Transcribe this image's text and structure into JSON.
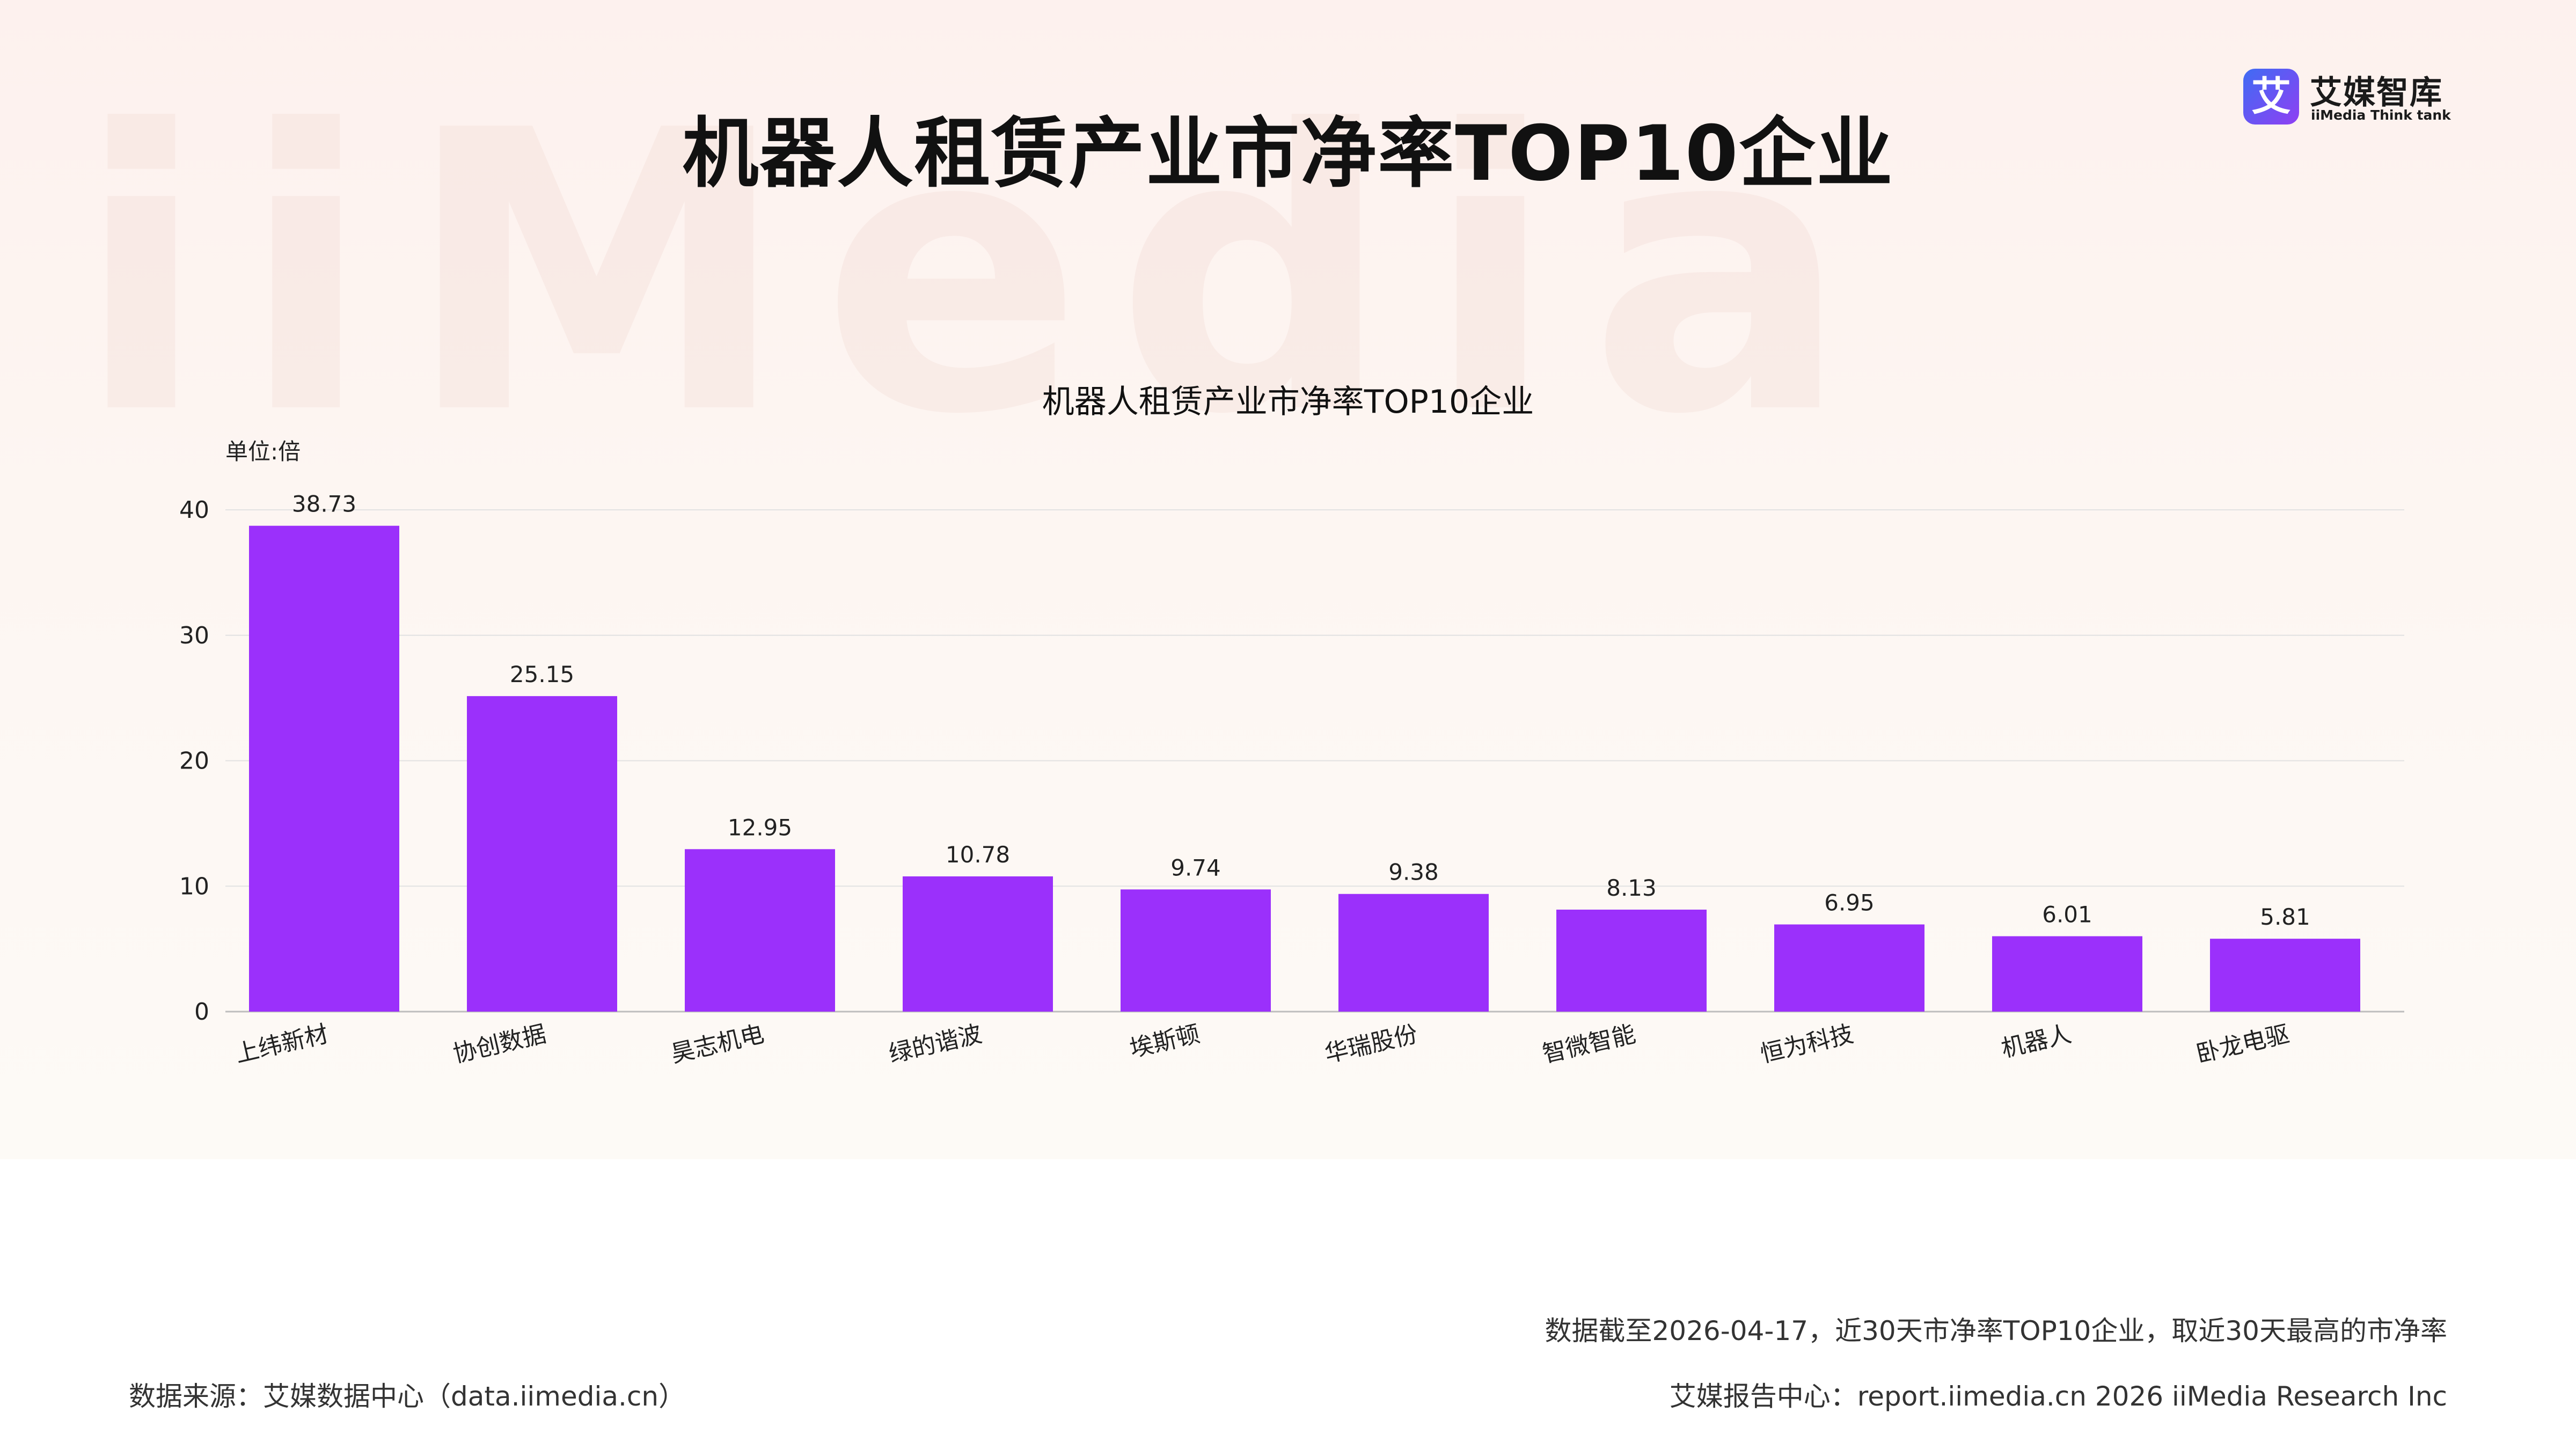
{
  "header": {
    "title": "机器人租赁产业市净率TOP10企业",
    "logo_cn": "艾媒智库",
    "logo_en": "iiMedia Think tank",
    "logo_glyph": "艾"
  },
  "watermark_text": "iiMedia",
  "colors": {
    "bar": "#9b30fb",
    "grid": "#e2e2e2",
    "axis": "#bdbdbd",
    "text": "#222222"
  },
  "chart_data": {
    "type": "bar",
    "title": "机器人租赁产业市净率TOP10企业",
    "unit_label": "单位:倍",
    "categories": [
      "上纬新材",
      "协创数据",
      "昊志机电",
      "绿的谐波",
      "埃斯顿",
      "华瑞股份",
      "智微智能",
      "恒为科技",
      "机器人",
      "卧龙电驱"
    ],
    "values": [
      38.73,
      25.15,
      12.95,
      10.78,
      9.74,
      9.38,
      8.13,
      6.95,
      6.01,
      5.81
    ],
    "value_labels": [
      "38.73",
      "25.15",
      "12.95",
      "10.78",
      "9.74",
      "9.38",
      "8.13",
      "6.95",
      "6.01",
      "5.81"
    ],
    "ylim": [
      0,
      40
    ],
    "yticks": [
      0,
      10,
      20,
      30,
      40
    ],
    "grid": true,
    "legend": "none"
  },
  "footer": {
    "note": "数据截至2026-04-17，近30天市净率TOP10企业，取近30天最高的市净率",
    "source": "数据来源：艾媒数据中心（data.iimedia.cn）",
    "report": "艾媒报告中心：report.iimedia.cn   2026 iiMedia Research Inc"
  }
}
